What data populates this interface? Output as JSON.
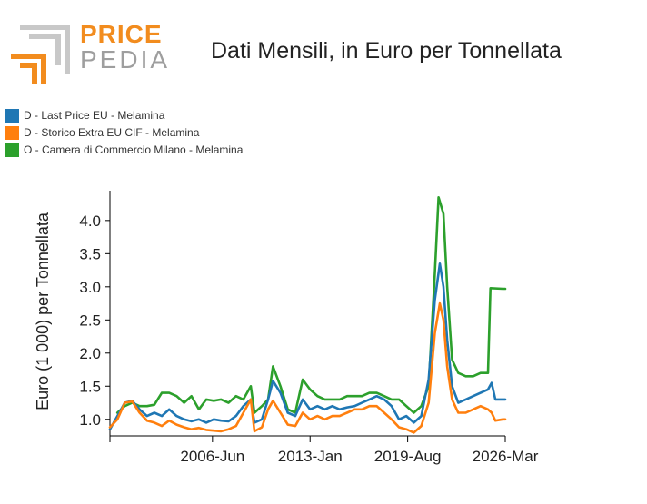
{
  "header": {
    "logo_word1": "PRICE",
    "logo_word2": "PEDIA"
  },
  "chart_data": {
    "type": "line",
    "title": "Dati Mensili, in Euro per Tonnellata",
    "ylabel": "Euro (1 000) per Tonnellata",
    "xlabel": "",
    "xlim": [
      "1999-07",
      "2026-03"
    ],
    "ylim": [
      0.75,
      4.45
    ],
    "x_ticks": [
      "2006-Jun",
      "2013-Jan",
      "2019-Aug",
      "2026-Mar"
    ],
    "y_ticks": [
      1.0,
      1.5,
      2.0,
      2.5,
      3.0,
      3.5,
      4.0
    ],
    "y_tick_labels": [
      "1.0",
      "1.5",
      "2.0",
      "2.5",
      "3.0",
      "3.5",
      "4.0"
    ],
    "grid": false,
    "legend_position": "top-left",
    "series": [
      {
        "name": "D - Last Price EU - Melamina",
        "color": "#1f77b4",
        "points": [
          [
            "1999-07",
            0.85
          ],
          [
            "2000-01",
            1.05
          ],
          [
            "2000-07",
            1.25
          ],
          [
            "2001-01",
            1.28
          ],
          [
            "2001-07",
            1.15
          ],
          [
            "2002-01",
            1.05
          ],
          [
            "2002-07",
            1.1
          ],
          [
            "2003-01",
            1.05
          ],
          [
            "2003-07",
            1.15
          ],
          [
            "2004-01",
            1.05
          ],
          [
            "2004-07",
            1.0
          ],
          [
            "2005-01",
            0.97
          ],
          [
            "2005-07",
            1.0
          ],
          [
            "2006-01",
            0.95
          ],
          [
            "2006-07",
            1.0
          ],
          [
            "2007-01",
            0.98
          ],
          [
            "2007-07",
            0.97
          ],
          [
            "2008-01",
            1.05
          ],
          [
            "2008-07",
            1.2
          ],
          [
            "2009-01",
            1.3
          ],
          [
            "2009-04",
            0.95
          ],
          [
            "2009-10",
            1.0
          ],
          [
            "2010-03",
            1.3
          ],
          [
            "2010-07",
            1.58
          ],
          [
            "2011-01",
            1.4
          ],
          [
            "2011-07",
            1.1
          ],
          [
            "2012-01",
            1.05
          ],
          [
            "2012-07",
            1.3
          ],
          [
            "2013-01",
            1.15
          ],
          [
            "2013-07",
            1.2
          ],
          [
            "2014-01",
            1.15
          ],
          [
            "2014-07",
            1.2
          ],
          [
            "2015-01",
            1.15
          ],
          [
            "2015-07",
            1.18
          ],
          [
            "2016-01",
            1.2
          ],
          [
            "2016-07",
            1.25
          ],
          [
            "2017-01",
            1.3
          ],
          [
            "2017-07",
            1.35
          ],
          [
            "2018-01",
            1.3
          ],
          [
            "2018-07",
            1.2
          ],
          [
            "2019-01",
            1.0
          ],
          [
            "2019-07",
            1.05
          ],
          [
            "2020-01",
            0.95
          ],
          [
            "2020-07",
            1.05
          ],
          [
            "2021-01",
            1.6
          ],
          [
            "2021-06",
            2.8
          ],
          [
            "2021-10",
            3.35
          ],
          [
            "2022-01",
            3.0
          ],
          [
            "2022-04",
            2.2
          ],
          [
            "2022-08",
            1.5
          ],
          [
            "2023-01",
            1.25
          ],
          [
            "2023-07",
            1.3
          ],
          [
            "2024-01",
            1.35
          ],
          [
            "2024-07",
            1.4
          ],
          [
            "2025-01",
            1.45
          ],
          [
            "2025-04",
            1.55
          ],
          [
            "2025-07",
            1.3
          ],
          [
            "2026-01",
            1.3
          ],
          [
            "2026-03",
            1.3
          ]
        ]
      },
      {
        "name": "D - Storico Extra EU CIF - Melamina",
        "color": "#ff7f0e",
        "points": [
          [
            "1999-07",
            0.88
          ],
          [
            "2000-01",
            1.0
          ],
          [
            "2000-07",
            1.25
          ],
          [
            "2001-01",
            1.27
          ],
          [
            "2001-07",
            1.1
          ],
          [
            "2002-01",
            0.98
          ],
          [
            "2002-07",
            0.95
          ],
          [
            "2003-01",
            0.9
          ],
          [
            "2003-07",
            0.98
          ],
          [
            "2004-01",
            0.92
          ],
          [
            "2004-07",
            0.88
          ],
          [
            "2005-01",
            0.85
          ],
          [
            "2005-07",
            0.87
          ],
          [
            "2006-01",
            0.84
          ],
          [
            "2006-07",
            0.83
          ],
          [
            "2007-01",
            0.82
          ],
          [
            "2007-07",
            0.85
          ],
          [
            "2008-01",
            0.9
          ],
          [
            "2008-07",
            1.1
          ],
          [
            "2009-01",
            1.3
          ],
          [
            "2009-04",
            0.82
          ],
          [
            "2009-10",
            0.88
          ],
          [
            "2010-03",
            1.15
          ],
          [
            "2010-07",
            1.28
          ],
          [
            "2011-01",
            1.1
          ],
          [
            "2011-07",
            0.92
          ],
          [
            "2012-01",
            0.9
          ],
          [
            "2012-07",
            1.1
          ],
          [
            "2013-01",
            1.0
          ],
          [
            "2013-07",
            1.05
          ],
          [
            "2014-01",
            1.0
          ],
          [
            "2014-07",
            1.05
          ],
          [
            "2015-01",
            1.05
          ],
          [
            "2015-07",
            1.1
          ],
          [
            "2016-01",
            1.15
          ],
          [
            "2016-07",
            1.15
          ],
          [
            "2017-01",
            1.2
          ],
          [
            "2017-07",
            1.2
          ],
          [
            "2018-01",
            1.1
          ],
          [
            "2018-07",
            1.0
          ],
          [
            "2019-01",
            0.88
          ],
          [
            "2019-07",
            0.85
          ],
          [
            "2020-01",
            0.8
          ],
          [
            "2020-07",
            0.9
          ],
          [
            "2021-01",
            1.25
          ],
          [
            "2021-06",
            2.3
          ],
          [
            "2021-10",
            2.75
          ],
          [
            "2022-01",
            2.5
          ],
          [
            "2022-04",
            1.8
          ],
          [
            "2022-08",
            1.3
          ],
          [
            "2023-01",
            1.1
          ],
          [
            "2023-07",
            1.1
          ],
          [
            "2024-01",
            1.15
          ],
          [
            "2024-07",
            1.2
          ],
          [
            "2025-01",
            1.15
          ],
          [
            "2025-04",
            1.1
          ],
          [
            "2025-07",
            0.98
          ],
          [
            "2026-01",
            1.0
          ],
          [
            "2026-03",
            1.0
          ]
        ]
      },
      {
        "name": "O - Camera di Commercio Milano - Melamina",
        "color": "#2ca02c",
        "points": [
          [
            "2000-01",
            1.1
          ],
          [
            "2000-07",
            1.2
          ],
          [
            "2001-01",
            1.25
          ],
          [
            "2001-07",
            1.2
          ],
          [
            "2002-01",
            1.2
          ],
          [
            "2002-07",
            1.22
          ],
          [
            "2003-01",
            1.4
          ],
          [
            "2003-07",
            1.4
          ],
          [
            "2004-01",
            1.35
          ],
          [
            "2004-07",
            1.25
          ],
          [
            "2005-01",
            1.35
          ],
          [
            "2005-07",
            1.15
          ],
          [
            "2006-01",
            1.3
          ],
          [
            "2006-07",
            1.28
          ],
          [
            "2007-01",
            1.3
          ],
          [
            "2007-07",
            1.25
          ],
          [
            "2008-01",
            1.35
          ],
          [
            "2008-07",
            1.3
          ],
          [
            "2009-01",
            1.5
          ],
          [
            "2009-04",
            1.1
          ],
          [
            "2009-10",
            1.2
          ],
          [
            "2010-03",
            1.3
          ],
          [
            "2010-07",
            1.8
          ],
          [
            "2011-01",
            1.5
          ],
          [
            "2011-07",
            1.15
          ],
          [
            "2012-01",
            1.1
          ],
          [
            "2012-07",
            1.6
          ],
          [
            "2013-01",
            1.45
          ],
          [
            "2013-07",
            1.35
          ],
          [
            "2014-01",
            1.3
          ],
          [
            "2014-07",
            1.3
          ],
          [
            "2015-01",
            1.3
          ],
          [
            "2015-07",
            1.35
          ],
          [
            "2016-01",
            1.35
          ],
          [
            "2016-07",
            1.35
          ],
          [
            "2017-01",
            1.4
          ],
          [
            "2017-07",
            1.4
          ],
          [
            "2018-01",
            1.35
          ],
          [
            "2018-07",
            1.3
          ],
          [
            "2019-01",
            1.3
          ],
          [
            "2019-07",
            1.2
          ],
          [
            "2020-01",
            1.1
          ],
          [
            "2020-07",
            1.2
          ],
          [
            "2021-01",
            1.5
          ],
          [
            "2021-06",
            3.2
          ],
          [
            "2021-09",
            4.35
          ],
          [
            "2022-01",
            4.1
          ],
          [
            "2022-04",
            3.0
          ],
          [
            "2022-08",
            1.9
          ],
          [
            "2023-01",
            1.7
          ],
          [
            "2023-07",
            1.65
          ],
          [
            "2024-01",
            1.65
          ],
          [
            "2024-07",
            1.7
          ],
          [
            "2025-01",
            1.7
          ],
          [
            "2025-03",
            2.98
          ],
          [
            "2026-01",
            2.97
          ],
          [
            "2026-03",
            2.97
          ]
        ]
      }
    ]
  }
}
